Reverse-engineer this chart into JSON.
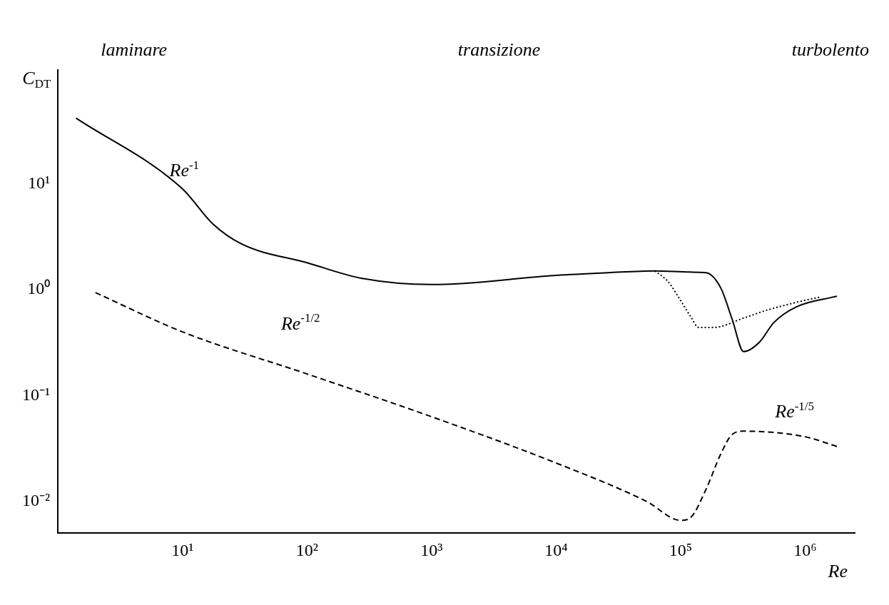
{
  "chart_data": {
    "type": "line",
    "xlabel": "Re",
    "ylabel": "C$_{DT}$",
    "log": "xy",
    "grid": false,
    "legend": false,
    "marker": "none",
    "xlim": [
      1,
      2500000
    ],
    "ylim": [
      0.005,
      120
    ],
    "xticks": [
      {
        "value": 10,
        "label": "10¹"
      },
      {
        "value": 100,
        "label": "10²"
      },
      {
        "value": 1000,
        "label": "10³"
      },
      {
        "value": 10000,
        "label": "10⁴"
      },
      {
        "value": 100000,
        "label": "10⁵"
      },
      {
        "value": 1000000,
        "label": "10⁶"
      }
    ],
    "yticks": [
      {
        "value": 0.01,
        "label": "10⁻²"
      },
      {
        "value": 0.1,
        "label": "10⁻¹"
      },
      {
        "value": 1,
        "label": "10⁰"
      },
      {
        "value": 10,
        "label": "10¹"
      }
    ],
    "series": [
      {
        "color": "#000000",
        "line_style": "solid",
        "x": [
          1.4,
          10,
          17.5,
          30,
          100,
          277,
          1000,
          10000,
          26000,
          62000,
          120000,
          160000,
          210000,
          260000,
          320000,
          430000,
          560000,
          850000,
          1800000
        ],
        "values": [
          42,
          9,
          4.2,
          2.7,
          1.8,
          1.28,
          1.12,
          1.37,
          1.45,
          1.51,
          1.47,
          1.45,
          1.04,
          0.52,
          0.26,
          0.32,
          0.49,
          0.69,
          0.87
        ]
      },
      {
        "color": "#000000",
        "line_style": "dotted",
        "x": [
          62000,
          79000,
          100000,
          120000,
          140000,
          185000,
          320000,
          490000,
          970000,
          1300000
        ],
        "values": [
          1.51,
          1.2,
          0.79,
          0.56,
          0.44,
          0.44,
          0.54,
          0.64,
          0.79,
          0.85
        ]
      },
      {
        "color": "#000000",
        "line_style": "dashed",
        "x": [
          2,
          10,
          100,
          1000,
          10000,
          53000,
          100000,
          120000,
          160000,
          210000,
          260000,
          320000,
          970000,
          1800000
        ],
        "values": [
          0.94,
          0.4,
          0.16,
          0.063,
          0.023,
          0.01,
          0.0066,
          0.007,
          0.013,
          0.028,
          0.043,
          0.046,
          0.041,
          0.033
        ]
      }
    ],
    "annotations": [
      "laminare",
      "transizione",
      "turbolento",
      "Re$^{-1}$",
      "Re$^{-1/2}$",
      "Re$^{-1/5}$"
    ]
  }
}
